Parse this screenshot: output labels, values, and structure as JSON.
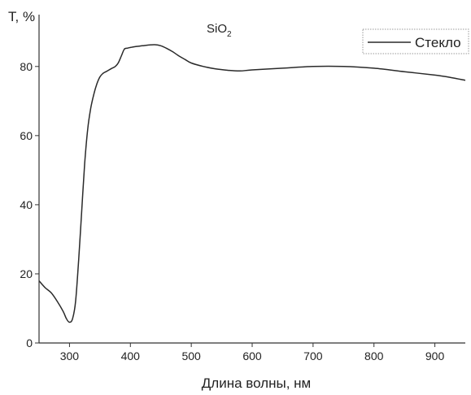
{
  "chart_data": {
    "type": "line",
    "title_main": "SiO",
    "title_sub": "2",
    "xlabel": "Длина волны, нм",
    "ylabel": "T, %",
    "xlim": [
      250,
      950
    ],
    "ylim": [
      0,
      95
    ],
    "xticks": [
      300,
      400,
      500,
      600,
      700,
      800,
      900
    ],
    "yticks": [
      0,
      20,
      40,
      60,
      80
    ],
    "grid": false,
    "legend_position": "top-right",
    "line_color": "#2a2a2a",
    "series": [
      {
        "name": "Стекло",
        "x": [
          250,
          260,
          270,
          280,
          290,
          295,
          300,
          305,
          310,
          315,
          320,
          325,
          330,
          335,
          340,
          345,
          350,
          355,
          360,
          365,
          370,
          375,
          380,
          385,
          390,
          395,
          400,
          410,
          420,
          430,
          440,
          450,
          460,
          470,
          480,
          490,
          500,
          520,
          540,
          560,
          580,
          600,
          650,
          700,
          750,
          800,
          850,
          900,
          920,
          950
        ],
        "y": [
          18,
          16,
          14.5,
          12,
          9,
          7,
          6,
          7,
          12,
          24,
          38,
          52,
          62,
          68,
          72,
          75,
          77,
          78,
          78.5,
          79,
          79.5,
          80,
          81,
          83,
          85,
          85.3,
          85.5,
          85.8,
          86,
          86.2,
          86.3,
          86,
          85.2,
          84.2,
          83,
          82,
          81,
          80,
          79.3,
          78.9,
          78.7,
          79,
          79.5,
          80,
          80,
          79.5,
          78.5,
          77.5,
          77,
          76
        ]
      }
    ]
  }
}
